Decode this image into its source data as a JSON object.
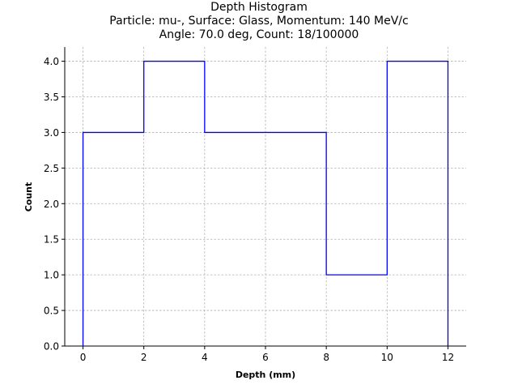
{
  "chart_data": {
    "type": "line",
    "drawstyle": "step-histogram",
    "title_lines": [
      "Depth Histogram",
      "Particle: mu-, Surface: Glass, Momentum: 140 MeV/c",
      "Angle: 70.0 deg, Count: 18/100000"
    ],
    "xlabel": "Depth (mm)",
    "ylabel": "Count",
    "bin_edges": [
      0,
      2,
      4,
      6,
      8,
      10,
      12
    ],
    "values": [
      3,
      4,
      3,
      3,
      1,
      4
    ],
    "xlim": [
      -0.6,
      12.6
    ],
    "ylim": [
      0,
      4.2
    ],
    "xticks": [
      0,
      2,
      4,
      6,
      8,
      10,
      12
    ],
    "xtick_labels": [
      "0",
      "2",
      "4",
      "6",
      "8",
      "10",
      "12"
    ],
    "yticks": [
      0,
      0.5,
      1,
      1.5,
      2,
      2.5,
      3,
      3.5,
      4
    ],
    "ytick_labels": [
      "0.0",
      "0.5",
      "1.0",
      "1.5",
      "2.0",
      "2.5",
      "3.0",
      "3.5",
      "4.0"
    ],
    "grid": true,
    "line_color": "#0000ff",
    "grid_color": "#b0b0b0"
  }
}
